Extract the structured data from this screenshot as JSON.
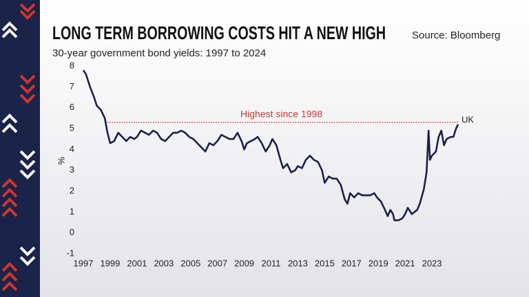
{
  "chart_data": {
    "type": "line",
    "title": "LONG TERM BORROWING COSTS HIT A NEW HIGH",
    "subtitle": "30-year government bond yields: 1997 to 2024",
    "source": "Source: Bloomberg",
    "y_label": "%",
    "x": [
      1997.0,
      1997.2,
      1997.5,
      1997.8,
      1998.0,
      1998.3,
      1998.6,
      1998.8,
      1999.0,
      1999.3,
      1999.6,
      1999.9,
      2000.2,
      2000.5,
      2000.8,
      2001.0,
      2001.3,
      2001.6,
      2001.9,
      2002.2,
      2002.5,
      2002.8,
      2003.1,
      2003.4,
      2003.7,
      2004.0,
      2004.3,
      2004.6,
      2004.9,
      2005.2,
      2005.5,
      2005.8,
      2006.1,
      2006.4,
      2006.7,
      2007.0,
      2007.3,
      2007.6,
      2007.9,
      2008.2,
      2008.5,
      2008.8,
      2009.0,
      2009.2,
      2009.5,
      2009.8,
      2010.0,
      2010.3,
      2010.6,
      2010.9,
      2011.1,
      2011.4,
      2011.7,
      2011.9,
      2012.2,
      2012.5,
      2012.8,
      2013.0,
      2013.3,
      2013.6,
      2013.9,
      2014.2,
      2014.5,
      2014.8,
      2015.0,
      2015.3,
      2015.6,
      2015.9,
      2016.2,
      2016.5,
      2016.7,
      2016.9,
      2017.2,
      2017.5,
      2017.8,
      2018.1,
      2018.4,
      2018.7,
      2018.9,
      2019.2,
      2019.5,
      2019.7,
      2019.9,
      2020.1,
      2020.2,
      2020.5,
      2020.8,
      2021.0,
      2021.2,
      2021.5,
      2021.7,
      2021.9,
      2022.1,
      2022.4,
      2022.6,
      2022.75,
      2022.85,
      2023.0,
      2023.3,
      2023.5,
      2023.7,
      2023.9,
      2024.1,
      2024.4,
      2024.6,
      2024.8,
      2024.95
    ],
    "series": [
      {
        "name": "UK",
        "color": "#1b1f4b",
        "values": [
          7.8,
          7.6,
          7.0,
          6.5,
          6.1,
          5.9,
          5.5,
          4.8,
          4.3,
          4.4,
          4.8,
          4.6,
          4.4,
          4.6,
          4.5,
          4.6,
          4.9,
          4.8,
          4.7,
          4.9,
          4.8,
          4.5,
          4.4,
          4.6,
          4.8,
          4.8,
          4.9,
          4.8,
          4.6,
          4.5,
          4.3,
          4.1,
          3.9,
          4.3,
          4.2,
          4.4,
          4.7,
          4.6,
          4.5,
          4.5,
          4.8,
          4.4,
          4.0,
          4.3,
          4.4,
          4.5,
          4.6,
          4.3,
          3.9,
          4.2,
          4.5,
          4.2,
          3.5,
          3.1,
          3.3,
          2.9,
          3.0,
          3.2,
          3.1,
          3.5,
          3.7,
          3.5,
          3.4,
          3.0,
          2.4,
          2.7,
          2.6,
          2.6,
          2.3,
          1.6,
          1.4,
          1.9,
          1.7,
          1.9,
          1.8,
          1.8,
          1.8,
          1.9,
          1.7,
          1.5,
          1.1,
          0.8,
          1.1,
          0.9,
          0.6,
          0.6,
          0.7,
          0.9,
          1.2,
          0.9,
          1.0,
          1.1,
          1.4,
          2.1,
          2.9,
          4.9,
          3.5,
          3.7,
          3.9,
          4.6,
          4.9,
          4.2,
          4.5,
          4.6,
          4.6,
          5.0,
          5.2
        ]
      }
    ],
    "reference": {
      "label": "Highest since 1998",
      "y": 5.3,
      "x": [
        1998.6,
        2024.95
      ],
      "color": "#d0352f"
    },
    "xlim": [
      1997,
      2025
    ],
    "xticks": [
      1997,
      1999,
      2001,
      2003,
      2005,
      2007,
      2009,
      2011,
      2013,
      2015,
      2017,
      2019,
      2021,
      2023
    ],
    "ylim": [
      -1,
      8
    ],
    "yticks": [
      -1,
      0,
      1,
      2,
      3,
      4,
      5,
      6,
      7,
      8
    ],
    "grid": false
  }
}
